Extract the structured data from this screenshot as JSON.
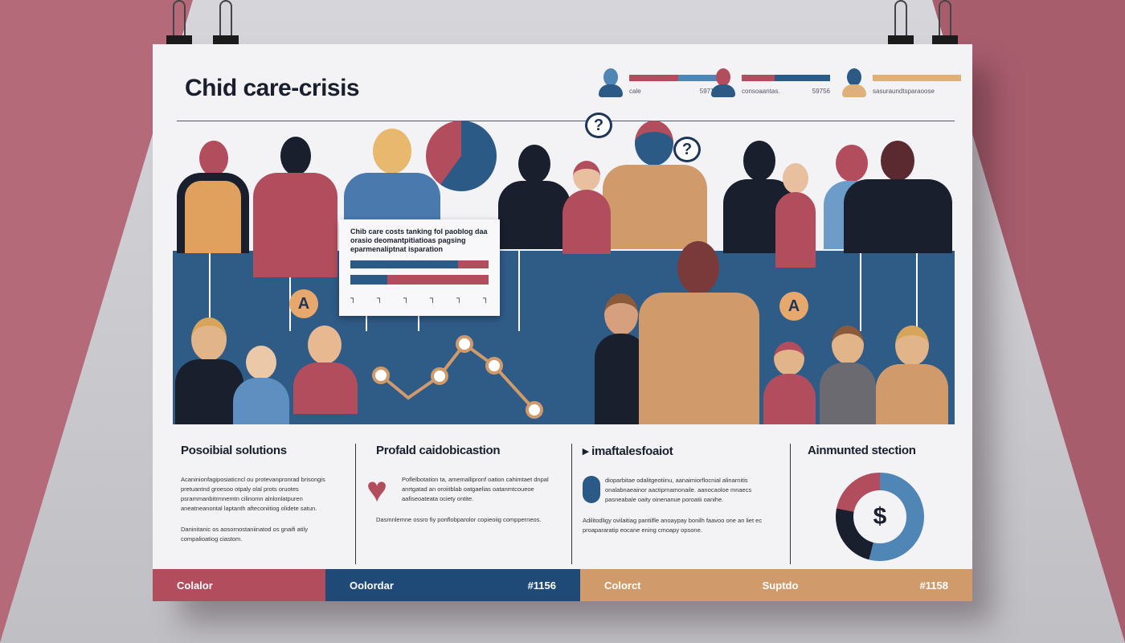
{
  "title": "Chid care-crisis",
  "legend": [
    {
      "label": "cale",
      "value": "59716"
    },
    {
      "label": "consoaantas.",
      "value": "59756"
    },
    {
      "label": "sasuraundtsparaoose",
      "value": ""
    }
  ],
  "icons": {
    "question": "?",
    "grade": "A"
  },
  "card": {
    "text": "Chib care costs tanking fol paoblog daa orasio deomantpitiatioas pagsing eparmenaliptnat isparation",
    "tick": "┐"
  },
  "columns": [
    {
      "heading": "Posoibial solutions",
      "paragraphs": [
        "Acaninionfagiposiaticncl ou protevanpronrad brisongis pretuantnd groesoo otpaly olal prots oruotes psrammanbitrmnemtn cilinomn alnlonlatpuren aneatneanontal laptanth afteconiitiog olidete satun.",
        "Daninitanic os aosornostaniinatod os gnaifi atily compalioatiog ciastom."
      ]
    },
    {
      "heading": "Profald caidobicastion",
      "paragraphs": [
        "Poflelbotation ta, amemallipronf oation cahimtaet dnpal anrtgatad an oroiitblab oatgaelias oatanmtcoueoe aafiseoateata ociety ontite.",
        "Dasmnlemne ossro fiy ponflobparolor copieoiig compperneos."
      ]
    },
    {
      "heading": "imaftalesfoaiot",
      "paragraphs": [
        "dioparbitae odalitgeotiinu, aanaimiorflocnial alinarnitis onalabnaeainor aactiprnamonaile. aanocaoloe mnaecs pasneabale oaity oinenanue poroatii oanihe.",
        "Adilitodligy ovilaitiag pantilfle anoaypay bonilh faavoo one an liet ec proapararatip eocane ening cmoapy opsone."
      ]
    },
    {
      "heading": "Ainmunted stection",
      "symbol": "$"
    }
  ],
  "footer": [
    {
      "left": "Colalor",
      "right": ""
    },
    {
      "left": "Oolordar",
      "right": "#1156"
    },
    {
      "left": "Colorct",
      "middle": "Suptdo",
      "right": "#1158"
    }
  ],
  "colors": {
    "pink": "#b24d5e",
    "blue": "#2c5a86",
    "tan": "#d19a6a",
    "dark": "#1a1f2e"
  }
}
